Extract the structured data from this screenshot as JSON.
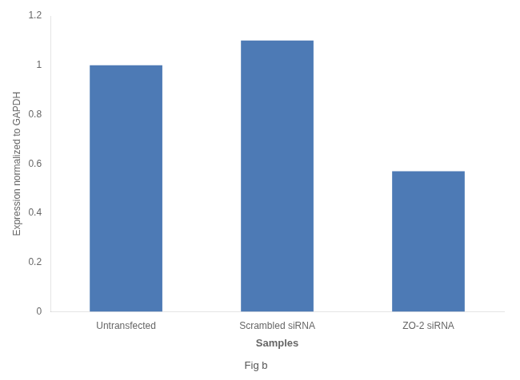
{
  "chart_data": {
    "type": "bar",
    "subtitle": "Fig b",
    "categories": [
      "Untransfected",
      "Scrambled siRNA",
      "ZO-2 siRNA"
    ],
    "values": [
      1.0,
      1.1,
      0.57
    ],
    "color": "#4d7ab5",
    "x_label": "Samples",
    "y_label": "Expression normalized to GAPDH",
    "ylim": [
      0,
      1.2
    ],
    "yticks": [
      0,
      0.2,
      0.4,
      0.6,
      0.8,
      1.0,
      1.2
    ],
    "grid": false
  }
}
